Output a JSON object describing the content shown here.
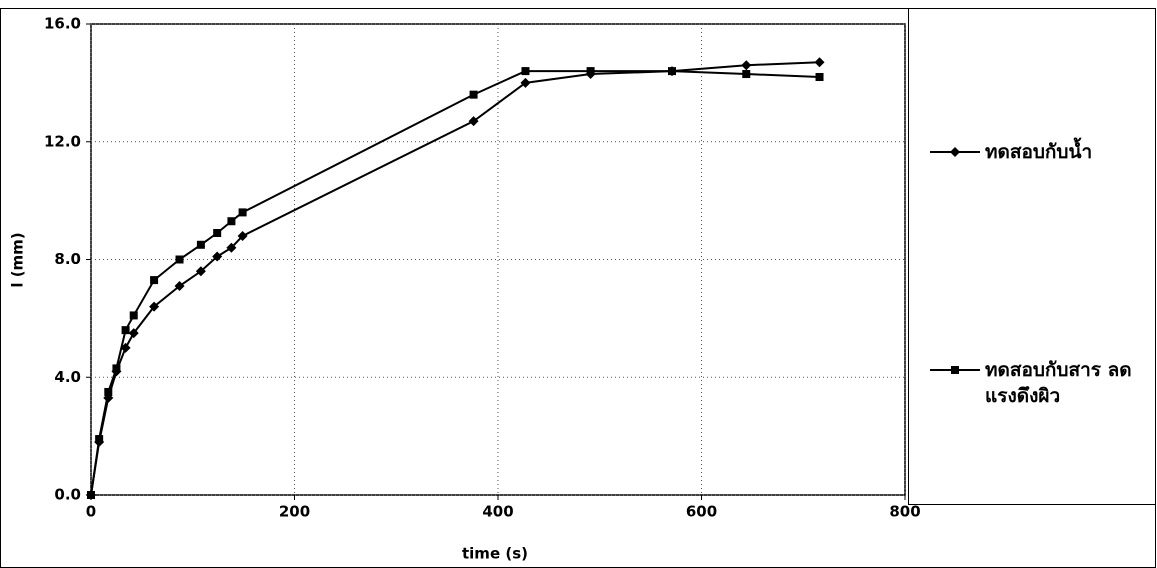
{
  "chart_data": {
    "type": "line",
    "xlabel": "time (s)",
    "ylabel": "l (mm)",
    "xlim": [
      0,
      800
    ],
    "xticks": [
      0,
      200,
      400,
      600,
      800
    ],
    "ylim": [
      0,
      16
    ],
    "yticks": [
      {
        "value": 0,
        "label": "0.0"
      },
      {
        "value": 4,
        "label": "4.0"
      },
      {
        "value": 8,
        "label": "8.0"
      },
      {
        "value": 12,
        "label": "12.0"
      },
      {
        "value": 16,
        "label": "16.0"
      }
    ],
    "grid": true,
    "legend": "right",
    "series": [
      {
        "name": "ทดสอบกับน้ำ",
        "color": "#000000",
        "marker": "diamond",
        "x": [
          0,
          8,
          17,
          25,
          34,
          42,
          62,
          87,
          108,
          124,
          138,
          149,
          376,
          427,
          491,
          571,
          644,
          716
        ],
        "values": [
          0,
          1.8,
          3.3,
          4.2,
          5.0,
          5.5,
          6.4,
          7.1,
          7.6,
          8.1,
          8.4,
          8.8,
          12.7,
          14.0,
          14.3,
          14.4,
          14.6,
          14.7
        ]
      },
      {
        "name": "ทดสอบกับสาร ลดแรงดึงผิว",
        "color": "#000000",
        "marker": "square",
        "x": [
          0,
          8,
          17,
          25,
          34,
          42,
          62,
          87,
          108,
          124,
          138,
          149,
          376,
          427,
          491,
          571,
          644,
          716
        ],
        "values": [
          0,
          1.9,
          3.5,
          4.3,
          5.6,
          6.1,
          7.3,
          8.0,
          8.5,
          8.9,
          9.3,
          9.6,
          13.6,
          14.4,
          14.4,
          14.4,
          14.3,
          14.2
        ]
      }
    ]
  }
}
